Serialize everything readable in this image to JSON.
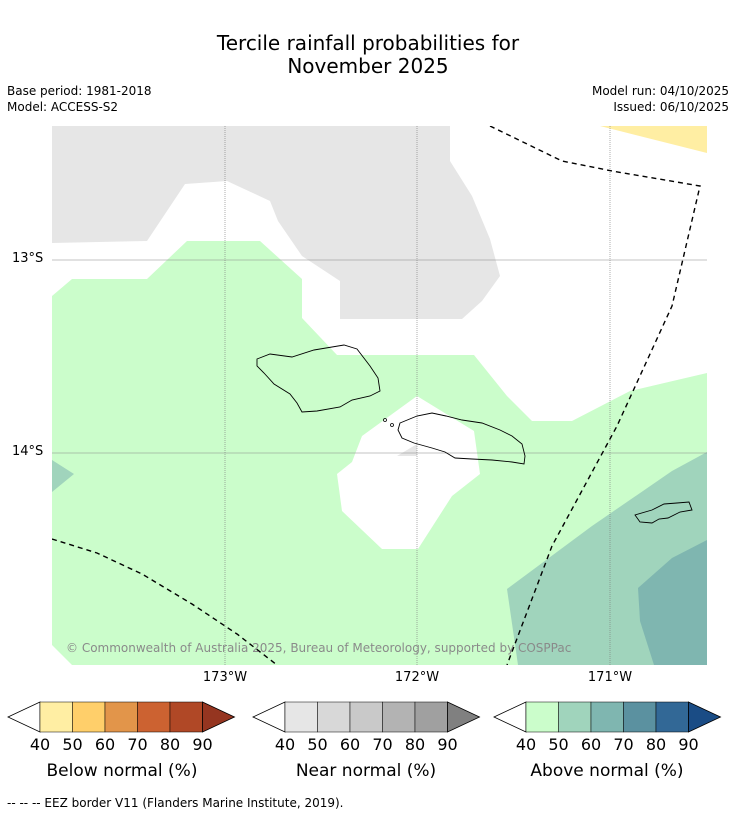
{
  "title_line1": "Tercile rainfall probabilities for",
  "title_line2": "November 2025",
  "base_period": "Base period: 1981-2018",
  "model": "Model: ACCESS-S2",
  "model_run": "Model run: 04/10/2025",
  "issued": "Issued: 06/10/2025",
  "copyright": "© Commonwealth of Australia 2025, Bureau of Meteorology, supported by COSPPac",
  "lat_labels": [
    "13°S",
    "14°S"
  ],
  "lon_labels": [
    "173°W",
    "172°W",
    "171°W"
  ],
  "colorbars": [
    {
      "name": "Below normal (%)",
      "ticks": [
        "40",
        "50",
        "60",
        "70",
        "80",
        "90"
      ],
      "colors": [
        "#ffeea3",
        "#ffcf6a",
        "#e2954a",
        "#cc6231",
        "#b04826",
        "#953520"
      ]
    },
    {
      "name": "Near normal (%)",
      "ticks": [
        "40",
        "50",
        "60",
        "70",
        "80",
        "90"
      ],
      "colors": [
        "#e6e6e6",
        "#d8d8d8",
        "#c9c9c9",
        "#b3b3b3",
        "#a0a0a0",
        "#808080"
      ]
    },
    {
      "name": "Above normal (%)",
      "ticks": [
        "40",
        "50",
        "60",
        "70",
        "80",
        "90"
      ],
      "colors": [
        "#cbfdcb",
        "#a0d4bc",
        "#7fb6b0",
        "#5b91a0",
        "#326896",
        "#1a4c85"
      ]
    }
  ],
  "footnote": "--  --  -- EEZ border V11 (Flanders Marine Institute, 2019)."
}
